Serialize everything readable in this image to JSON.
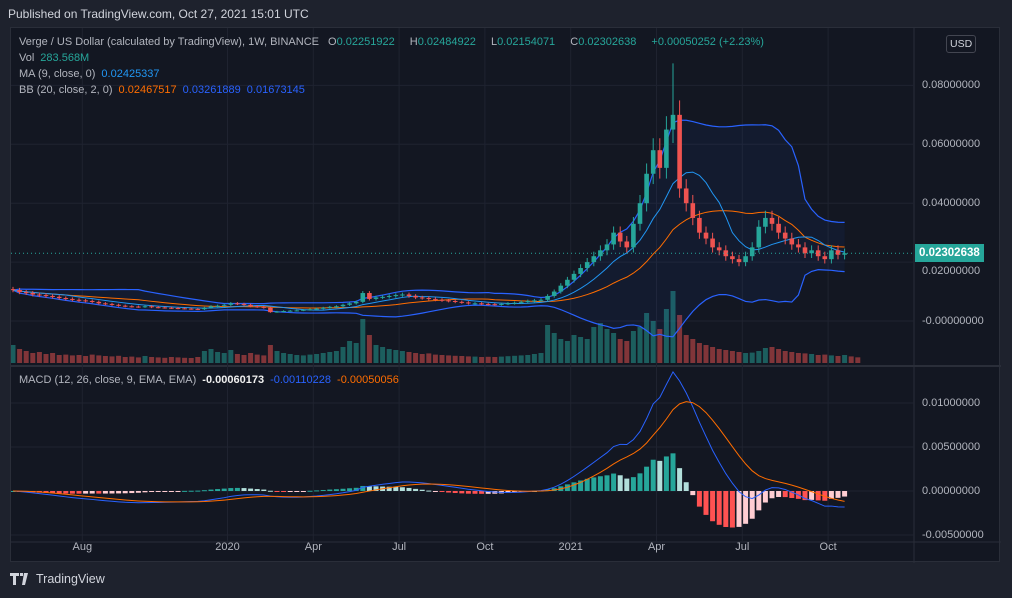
{
  "published": "Published on TradingView.com, Oct 27, 2021 15:01 UTC",
  "legend": {
    "symbol": "Verge / US Dollar (calculated by TradingView), 1W, BINANCE",
    "o_label": "O",
    "o": "0.02251922",
    "h_label": "H",
    "h": "0.02484922",
    "l_label": "L",
    "l": "0.02154071",
    "c_label": "C",
    "c": "0.02302638",
    "change": "+0.00050252 (+2.23%)",
    "vol_label": "Vol",
    "vol": "283.568M",
    "ma_label": "MA (9, close, 0)",
    "ma": "0.02425337",
    "bb_label": "BB (20, close, 2, 0)",
    "bb_basis": "0.02467517",
    "bb_upper": "0.03261889",
    "bb_lower": "0.01673145",
    "macd_label": "MACD (12, 26, close, 9, EMA, EMA)",
    "macd_hist": "-0.00060173",
    "macd": "-0.00110228",
    "macd_signal": "-0.00050056"
  },
  "currency_button": "USD",
  "last_price": "0.02302638",
  "logo_text": "TradingView",
  "colors": {
    "up": "#26a69a",
    "down": "#ef5350",
    "ma": "#2196f3",
    "bb_basis": "#ff6d00",
    "bb_band": "#2962ff",
    "macd": "#2962ff",
    "signal": "#ff6d00"
  },
  "chart_data": [
    {
      "type": "candlestick",
      "title": "Verge / US Dollar",
      "interval": "1W",
      "price_ticks": [
        "0.08000000",
        "0.06000000",
        "0.04000000",
        "0.02000000",
        "-0.00000000"
      ],
      "price_tick_values": [
        0.08,
        0.06,
        0.04,
        0.02,
        0
      ],
      "ylim": [
        -0.0145,
        0.0975
      ],
      "time_ticks": [
        "Aug",
        "2020",
        "Apr",
        "Jul",
        "Oct",
        "2021",
        "Apr",
        "Jul",
        "Oct"
      ],
      "time_tick_weeks": [
        10.5,
        32.5,
        45.5,
        58.5,
        71.5,
        84.5,
        97.5,
        110.5,
        123.5
      ],
      "peak_high": 0.0875,
      "close": [
        0.0105,
        0.0098,
        0.0095,
        0.009,
        0.0088,
        0.0085,
        0.0082,
        0.0078,
        0.0075,
        0.0072,
        0.007,
        0.0068,
        0.0065,
        0.006,
        0.0058,
        0.0055,
        0.0052,
        0.005,
        0.0049,
        0.0048,
        0.005,
        0.0047,
        0.0046,
        0.0045,
        0.0044,
        0.0043,
        0.0042,
        0.0041,
        0.004,
        0.0045,
        0.005,
        0.0052,
        0.0055,
        0.006,
        0.0058,
        0.0055,
        0.005,
        0.0048,
        0.0045,
        0.003,
        0.0032,
        0.0034,
        0.0035,
        0.0036,
        0.0038,
        0.004,
        0.0042,
        0.0045,
        0.0048,
        0.005,
        0.0055,
        0.006,
        0.0065,
        0.0095,
        0.0075,
        0.008,
        0.0082,
        0.0085,
        0.0088,
        0.009,
        0.0085,
        0.008,
        0.0078,
        0.0075,
        0.0072,
        0.007,
        0.0068,
        0.0065,
        0.0063,
        0.006,
        0.006,
        0.0058,
        0.0057,
        0.0056,
        0.0058,
        0.006,
        0.0062,
        0.0065,
        0.0068,
        0.007,
        0.0072,
        0.0085,
        0.01,
        0.012,
        0.014,
        0.016,
        0.018,
        0.02,
        0.022,
        0.024,
        0.026,
        0.03,
        0.027,
        0.025,
        0.033,
        0.04,
        0.05,
        0.058,
        0.052,
        0.065,
        0.07,
        0.045,
        0.04,
        0.035,
        0.03,
        0.028,
        0.025,
        0.024,
        0.022,
        0.021,
        0.02,
        0.022,
        0.025,
        0.032,
        0.035,
        0.033,
        0.03,
        0.028,
        0.026,
        0.025,
        0.023,
        0.024,
        0.022,
        0.021,
        0.024,
        0.0225,
        0.023
      ],
      "volume_m": [
        900,
        700,
        600,
        500,
        550,
        450,
        500,
        400,
        420,
        380,
        400,
        350,
        420,
        380,
        350,
        330,
        360,
        300,
        320,
        280,
        350,
        300,
        280,
        260,
        300,
        280,
        260,
        250,
        300,
        600,
        700,
        550,
        500,
        650,
        450,
        400,
        500,
        420,
        380,
        900,
        600,
        500,
        450,
        400,
        380,
        420,
        450,
        500,
        550,
        600,
        800,
        1100,
        1000,
        2200,
        1400,
        900,
        800,
        700,
        650,
        600,
        550,
        500,
        450,
        480,
        420,
        400,
        380,
        360,
        350,
        330,
        320,
        300,
        310,
        300,
        320,
        340,
        360,
        380,
        400,
        450,
        500,
        1900,
        1500,
        1200,
        1100,
        1400,
        1300,
        1200,
        1800,
        2000,
        1700,
        1500,
        1200,
        1100,
        1600,
        1800,
        2500,
        2100,
        1700,
        2700,
        3600,
        2400,
        1400,
        1200,
        1000,
        900,
        800,
        700,
        650,
        600,
        550,
        500,
        520,
        600,
        750,
        800,
        700,
        600,
        550,
        500,
        480,
        450,
        400,
        420,
        380,
        350,
        400,
        330,
        283.568
      ]
    },
    {
      "type": "macd",
      "params": "12, 26, close, 9",
      "ticks": [
        "0.01000000",
        "0.00500000",
        "0.00000000",
        "-0.00500000"
      ],
      "tick_values": [
        0.01,
        0.005,
        0,
        -0.005
      ],
      "ylim": [
        -0.0055,
        0.0125
      ]
    }
  ]
}
